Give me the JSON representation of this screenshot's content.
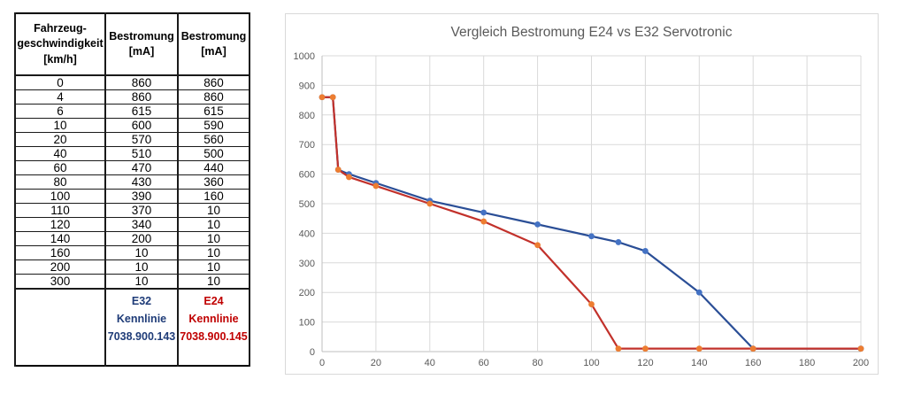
{
  "table": {
    "headers": [
      "Fahrzeug-\ngeschwindigkeit\n[km/h]",
      "Bestromung\n[mA]",
      "Bestromung\n[mA]"
    ],
    "rows": [
      [
        "0",
        "860",
        "860"
      ],
      [
        "4",
        "860",
        "860"
      ],
      [
        "6",
        "615",
        "615"
      ],
      [
        "10",
        "600",
        "590"
      ],
      [
        "20",
        "570",
        "560"
      ],
      [
        "40",
        "510",
        "500"
      ],
      [
        "60",
        "470",
        "440"
      ],
      [
        "80",
        "430",
        "360"
      ],
      [
        "100",
        "390",
        "160"
      ],
      [
        "110",
        "370",
        "10"
      ],
      [
        "120",
        "340",
        "10"
      ],
      [
        "140",
        "200",
        "10"
      ],
      [
        "160",
        "10",
        "10"
      ],
      [
        "200",
        "10",
        "10"
      ],
      [
        "300",
        "10",
        "10"
      ]
    ],
    "footer": {
      "e32": {
        "text": "E32\nKennlinie\n7038.900.143",
        "color": "#1F3C78"
      },
      "e24": {
        "text": "E24\nKennlinie\n7038.900.145",
        "color": "#C00000"
      }
    }
  },
  "chart_data": {
    "type": "line",
    "title": "Vergleich Bestromung E24 vs E32 Servotronic",
    "title_color": "#595959",
    "xlabel": "",
    "ylabel": "",
    "x": [
      0,
      4,
      6,
      10,
      20,
      40,
      60,
      80,
      100,
      110,
      120,
      140,
      160,
      200,
      300
    ],
    "series": [
      {
        "name": "E32 Kennlinie 7038.900.143",
        "values": [
          860,
          860,
          615,
          600,
          570,
          510,
          470,
          430,
          390,
          370,
          340,
          200,
          10,
          10,
          10
        ],
        "line_color": "#2A4E96",
        "marker_color": "#4472C4"
      },
      {
        "name": "E24 Kennlinie 7038.900.145",
        "values": [
          860,
          860,
          615,
          590,
          560,
          500,
          440,
          360,
          160,
          10,
          10,
          10,
          10,
          10,
          10
        ],
        "line_color": "#C2312B",
        "marker_color": "#ED7D31"
      }
    ],
    "xlim": [
      0,
      200
    ],
    "ylim": [
      0,
      1000
    ],
    "x_tick_step": 20,
    "y_tick_step": 100,
    "grid": true,
    "legend": "none",
    "grid_color": "#D9D9D9",
    "axis_color": "#BFBFBF",
    "tick_label_color": "#595959"
  }
}
